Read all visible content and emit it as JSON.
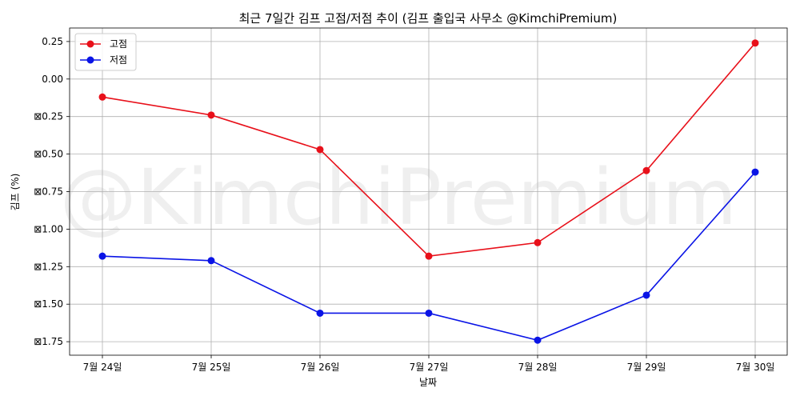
{
  "chart_data": {
    "type": "line",
    "title": "최근 7일간 김프 고점/저점 추이 (김프 출입국 사무소 @KimchiPremium)",
    "xlabel": "날짜",
    "ylabel": "김프 (%)",
    "categories": [
      "7월 24일",
      "7월 25일",
      "7월 26일",
      "7월 27일",
      "7월 28일",
      "7월 29일",
      "7월 30일"
    ],
    "series": [
      {
        "name": "고점",
        "color": "#e8101a",
        "values": [
          -0.12,
          -0.24,
          -0.47,
          -1.18,
          -1.09,
          -0.61,
          0.24
        ]
      },
      {
        "name": "저점",
        "color": "#0a14e6",
        "values": [
          -1.18,
          -1.21,
          -1.56,
          -1.56,
          -1.74,
          -1.44,
          -0.62
        ]
      }
    ],
    "ylim": [
      -1.84,
      0.34
    ],
    "yticks": [
      0.25,
      0.0,
      -0.25,
      -0.5,
      -0.75,
      -1.0,
      -1.25,
      -1.5,
      -1.75
    ],
    "ytick_labels": [
      "0.25",
      "0.00",
      "⊠0.25",
      "⊠0.50",
      "⊠0.75",
      "⊠1.00",
      "⊠1.25",
      "⊠1.50",
      "⊠1.75"
    ],
    "grid": true,
    "legend_position": "top-left",
    "watermark": "@KimchiPremium"
  }
}
